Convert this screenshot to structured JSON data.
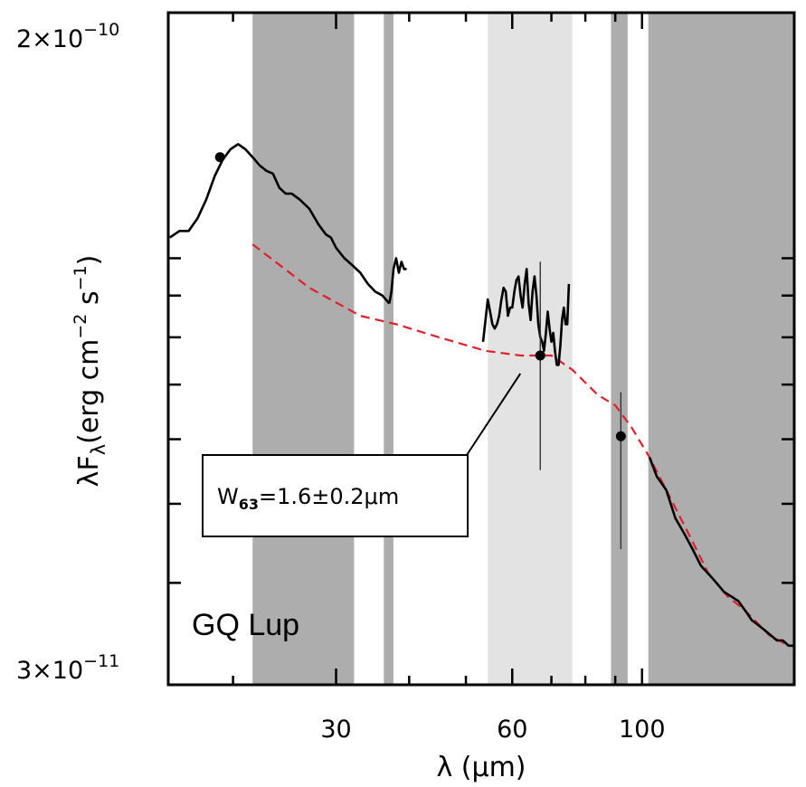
{
  "chart_data": {
    "type": "line",
    "xlabel": "λ (μm)",
    "ylabel": "λF",
    "ylabel_sub": "λ",
    "ylabel_units": "(erg cm",
    "ylabel_exp1": "−2",
    "ylabel_mid": " s",
    "ylabel_exp2": "−1",
    "ylabel_close": ")",
    "x_scale": "log",
    "y_scale": "log",
    "xlim": [
      15.5,
      182
    ],
    "ylim": [
      3e-11,
      2e-10
    ],
    "x_ticks": [
      {
        "value": 30,
        "label": "30"
      },
      {
        "value": 60,
        "label": "60"
      },
      {
        "value": 100,
        "label": "100"
      }
    ],
    "x_minor_ticks": [
      20,
      40,
      50,
      70,
      80,
      90,
      200
    ],
    "y_ticks": [
      {
        "value": 2e-10,
        "label_base": "2×10",
        "label_exp": "−10"
      },
      {
        "value": 3e-11,
        "label_base": "3×10",
        "label_exp": "−11"
      }
    ],
    "y_minor_ticks": [
      4e-11,
      5e-11,
      6e-11,
      7e-11,
      8e-11,
      9e-11,
      1e-10
    ],
    "target_label": "GQ Lup",
    "annotation": {
      "prefix": "W",
      "subscript": "63",
      "text": "=1.6±0.2μm",
      "points_to": [
        67,
        7.6e-11
      ]
    },
    "shaded_regions": [
      {
        "x0": 21.6,
        "x1": 32.2,
        "shade": "dark"
      },
      {
        "x0": 36.2,
        "x1": 37.6,
        "shade": "dark"
      },
      {
        "x0": 54.5,
        "x1": 76.0,
        "shade": "light"
      },
      {
        "x0": 88.5,
        "x1": 94.5,
        "shade": "dark"
      },
      {
        "x0": 102.5,
        "x1": 182,
        "shade": "dark"
      }
    ],
    "series": [
      {
        "style": "black-line",
        "segments": [
          [
            [
              15.6,
              1.06e-10
            ],
            [
              16.2,
              1.08e-10
            ],
            [
              16.8,
              1.08e-10
            ],
            [
              17.4,
              1.12e-10
            ],
            [
              18.0,
              1.18e-10
            ],
            [
              18.6,
              1.26e-10
            ],
            [
              19.2,
              1.32e-10
            ],
            [
              19.8,
              1.36e-10
            ],
            [
              20.4,
              1.38e-10
            ],
            [
              21.0,
              1.36e-10
            ],
            [
              21.6,
              1.33e-10
            ],
            [
              22.2,
              1.3e-10
            ],
            [
              22.8,
              1.28e-10
            ],
            [
              23.4,
              1.27e-10
            ],
            [
              24.0,
              1.22e-10
            ],
            [
              24.6,
              1.2e-10
            ],
            [
              25.2,
              1.2e-10
            ],
            [
              26.0,
              1.18e-10
            ],
            [
              27.0,
              1.15e-10
            ],
            [
              28.0,
              1.1e-10
            ],
            [
              28.8,
              1.07e-10
            ],
            [
              29.4,
              1.06e-10
            ],
            [
              30.0,
              1.03e-10
            ],
            [
              31.0,
              1e-10
            ],
            [
              32.0,
              9.8e-11
            ],
            [
              33.0,
              9.6e-11
            ],
            [
              34.0,
              9.3e-11
            ],
            [
              35.0,
              9.1e-11
            ],
            [
              36.0,
              9e-11
            ],
            [
              37.0,
              8.8e-11
            ]
          ],
          [
            [
              37.0,
              8.8e-11
            ],
            [
              37.3,
              9.1e-11
            ],
            [
              37.6,
              9.7e-11
            ],
            [
              38.0,
              1e-10
            ],
            [
              38.4,
              9.6e-11
            ],
            [
              38.8,
              9.9e-11
            ],
            [
              39.2,
              9.7e-11
            ],
            [
              39.6,
              9.7e-11
            ]
          ],
          [
            [
              53.5,
              7.9e-11
            ],
            [
              54.0,
              8.4e-11
            ],
            [
              54.5,
              8.9e-11
            ],
            [
              55.0,
              8.6e-11
            ],
            [
              55.5,
              8.3e-11
            ],
            [
              56.0,
              8.2e-11
            ],
            [
              56.5,
              8.3e-11
            ],
            [
              57.0,
              8.5e-11
            ],
            [
              57.5,
              8.9e-11
            ],
            [
              58.0,
              9.2e-11
            ],
            [
              58.5,
              9.1e-11
            ],
            [
              59.0,
              8.5e-11
            ],
            [
              59.5,
              8.7e-11
            ],
            [
              60.0,
              8.7e-11
            ],
            [
              60.5,
              9.1e-11
            ],
            [
              61.0,
              9.4e-11
            ],
            [
              61.5,
              9.5e-11
            ],
            [
              62.0,
              9e-11
            ],
            [
              62.5,
              8.7e-11
            ],
            [
              63.0,
              9.3e-11
            ],
            [
              63.5,
              9.7e-11
            ],
            [
              64.0,
              8.8e-11
            ],
            [
              64.5,
              8.4e-11
            ],
            [
              65.0,
              9.1e-11
            ],
            [
              65.5,
              9.5e-11
            ],
            [
              66.0,
              9e-11
            ],
            [
              66.5,
              8.3e-11
            ],
            [
              67.0,
              8e-11
            ],
            [
              67.5,
              7.9e-11
            ],
            [
              68.0,
              7.7e-11
            ],
            [
              68.5,
              8.1e-11
            ],
            [
              69.0,
              8.6e-11
            ],
            [
              69.5,
              8.2e-11
            ],
            [
              70.0,
              7.9e-11
            ],
            [
              70.5,
              8.1e-11
            ],
            [
              71.0,
              7.7e-11
            ],
            [
              71.5,
              7.4e-11
            ],
            [
              72.0,
              7.4e-11
            ],
            [
              72.5,
              7.8e-11
            ],
            [
              73.0,
              8.4e-11
            ],
            [
              73.5,
              8.7e-11
            ],
            [
              74.0,
              8.3e-11
            ],
            [
              74.5,
              8.3e-11
            ],
            [
              75.0,
              9.3e-11
            ]
          ],
          [
            [
              103.0,
              5.7e-11
            ],
            [
              106.0,
              5.4e-11
            ],
            [
              110.0,
              5.2e-11
            ],
            [
              114.0,
              4.8e-11
            ],
            [
              118.0,
              4.6e-11
            ],
            [
              122.0,
              4.4e-11
            ],
            [
              126.0,
              4.2e-11
            ],
            [
              130.0,
              4.1e-11
            ],
            [
              134.0,
              4e-11
            ],
            [
              138.0,
              3.9e-11
            ],
            [
              142.0,
              3.85e-11
            ],
            [
              146.0,
              3.8e-11
            ],
            [
              150.0,
              3.7e-11
            ],
            [
              154.0,
              3.6e-11
            ],
            [
              158.0,
              3.55e-11
            ],
            [
              162.0,
              3.5e-11
            ],
            [
              166.0,
              3.45e-11
            ],
            [
              170.0,
              3.4e-11
            ],
            [
              174.0,
              3.4e-11
            ],
            [
              178.0,
              3.35e-11
            ],
            [
              181.0,
              3.35e-11
            ]
          ]
        ]
      },
      {
        "style": "red-dashed",
        "points": [
          [
            21.6,
            1.04e-10
          ],
          [
            27.0,
            9.2e-11
          ],
          [
            33.0,
            8.5e-11
          ],
          [
            38.0,
            8.3e-11
          ],
          [
            45.0,
            8e-11
          ],
          [
            54.0,
            7.7e-11
          ],
          [
            62.0,
            7.6e-11
          ],
          [
            70.0,
            7.6e-11
          ],
          [
            76.0,
            7.3e-11
          ],
          [
            84.0,
            6.8e-11
          ],
          [
            90.0,
            6.6e-11
          ],
          [
            96.0,
            6.2e-11
          ],
          [
            103.0,
            5.7e-11
          ],
          [
            110.0,
            5.2e-11
          ],
          [
            120.0,
            4.6e-11
          ],
          [
            130.0,
            4.1e-11
          ],
          [
            140.0,
            3.85e-11
          ],
          [
            150.0,
            3.7e-11
          ],
          [
            165.0,
            3.45e-11
          ],
          [
            178.0,
            3.35e-11
          ]
        ]
      }
    ],
    "photometry": [
      {
        "x": 19.0,
        "y": 1.33e-10,
        "yerr_low": null,
        "yerr_high": null
      },
      {
        "x": 67.0,
        "y": 7.6e-11,
        "yerr_low": 5.5e-11,
        "yerr_high": 9.9e-11
      },
      {
        "x": 92.0,
        "y": 6.05e-11,
        "yerr_low": 4.4e-11,
        "yerr_high": 6.85e-11
      }
    ],
    "colors": {
      "dark_band": "#adadad",
      "light_band": "#e3e3e3",
      "spectrum": "#000000",
      "model": "#e0202a"
    }
  }
}
